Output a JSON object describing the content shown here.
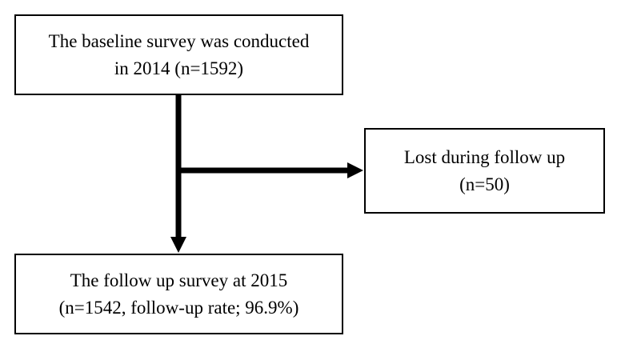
{
  "baseline": {
    "line1": "The baseline survey was conducted",
    "line2": "in 2014 (n=1592)"
  },
  "lost": {
    "line1": "Lost during follow up",
    "line2": "(n=50)"
  },
  "followup": {
    "line1": "The follow up survey at 2015",
    "line2": "(n=1542, follow-up rate; 96.9%)"
  }
}
